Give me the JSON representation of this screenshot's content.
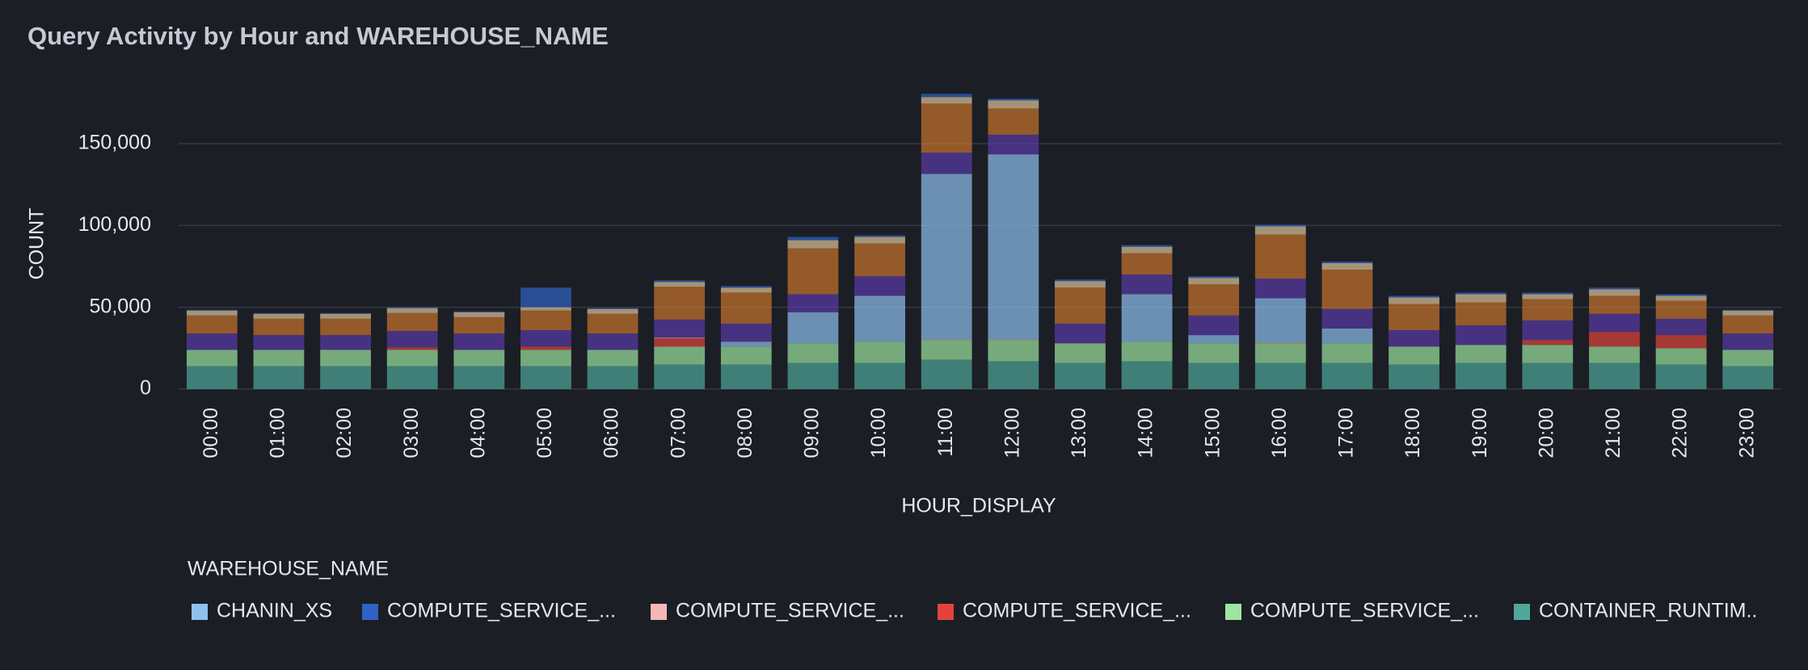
{
  "chart_data": {
    "type": "bar",
    "stacked": true,
    "title": "Query Activity by Hour and WAREHOUSE_NAME",
    "x_label": "HOUR_DISPLAY",
    "y_label": "COUNT",
    "legend_title": "WAREHOUSE_NAME",
    "categories": [
      "00:00",
      "01:00",
      "02:00",
      "03:00",
      "04:00",
      "05:00",
      "06:00",
      "07:00",
      "08:00",
      "09:00",
      "10:00",
      "11:00",
      "12:00",
      "13:00",
      "14:00",
      "15:00",
      "16:00",
      "17:00",
      "18:00",
      "19:00",
      "20:00",
      "21:00",
      "22:00",
      "23:00"
    ],
    "ylim": [
      0,
      185000
    ],
    "yticks": [
      0,
      {
        "value": 50000,
        "label": "50,000"
      },
      {
        "value": 100000,
        "label": "100,000"
      },
      {
        "value": 150000,
        "label": "150,000"
      }
    ],
    "grid": true,
    "series": [
      {
        "name": "CONTAINER_RUNTIM..",
        "color": "#4fa89a",
        "values": [
          14000,
          14000,
          14000,
          14000,
          14000,
          14000,
          14000,
          15000,
          15000,
          16000,
          16000,
          18000,
          17000,
          16000,
          17000,
          16000,
          16000,
          16000,
          15000,
          16000,
          16000,
          16000,
          15000,
          14000
        ]
      },
      {
        "name": "COMPUTE_SERVICE_...",
        "color": "#9de5a0",
        "values": [
          10000,
          10000,
          10000,
          10000,
          10000,
          10000,
          10000,
          11000,
          11000,
          12000,
          13000,
          12000,
          13000,
          12000,
          12000,
          12000,
          12000,
          12000,
          11000,
          11000,
          11000,
          10000,
          10000,
          10000
        ]
      },
      {
        "name": "COMPUTE_SERVICE_...",
        "color": "#e2443b",
        "values": [
          0,
          0,
          0,
          1500,
          0,
          2000,
          0,
          5000,
          0,
          0,
          0,
          0,
          0,
          0,
          0,
          0,
          0,
          0,
          0,
          0,
          3000,
          9000,
          8000,
          0
        ]
      },
      {
        "name": "COMPUTE_SERVICE_...",
        "color": "#f5b7b7",
        "values": [
          0,
          0,
          0,
          0,
          0,
          0,
          0,
          500,
          0,
          0,
          0,
          500,
          500,
          0,
          0,
          0,
          500,
          0,
          0,
          0,
          0,
          0,
          0,
          0
        ]
      },
      {
        "name": "CHANIN_XS",
        "color": "#8ec1f0",
        "values": [
          0,
          0,
          0,
          0,
          0,
          0,
          0,
          0,
          3000,
          19000,
          28000,
          101000,
          113000,
          0,
          29000,
          5000,
          27000,
          9000,
          0,
          0,
          0,
          0,
          0,
          0
        ]
      },
      {
        "name": null,
        "color": "#5a3aa8",
        "values": [
          10000,
          9000,
          9000,
          10000,
          10000,
          10000,
          10000,
          11000,
          11000,
          11000,
          12000,
          13000,
          12000,
          12000,
          12000,
          12000,
          12000,
          12000,
          10000,
          12000,
          12000,
          11000,
          10000,
          10000
        ]
      },
      {
        "name": null,
        "color": "#c8732c",
        "values": [
          11000,
          10000,
          10000,
          11000,
          10000,
          12000,
          12000,
          20000,
          19000,
          28000,
          20000,
          30000,
          16000,
          22000,
          13000,
          19000,
          27000,
          24000,
          16000,
          14000,
          13000,
          11000,
          11000,
          11000
        ]
      },
      {
        "name": null,
        "color": "#e0c49a",
        "values": [
          3000,
          3000,
          3000,
          3000,
          3000,
          2000,
          3000,
          3000,
          3000,
          5000,
          4000,
          4000,
          5000,
          4000,
          4000,
          4000,
          5000,
          4000,
          4000,
          5000,
          3000,
          4000,
          3000,
          3000
        ]
      },
      {
        "name": "COMPUTE_SERVICE_...",
        "color": "#2f62c4",
        "values": [
          500,
          500,
          500,
          500,
          500,
          12000,
          500,
          1000,
          1000,
          2000,
          1000,
          2000,
          1000,
          1000,
          1000,
          1000,
          1000,
          1000,
          1000,
          1000,
          1000,
          1000,
          1000,
          500
        ]
      }
    ],
    "legend_order": [
      4,
      8,
      3,
      2,
      1,
      0
    ]
  }
}
